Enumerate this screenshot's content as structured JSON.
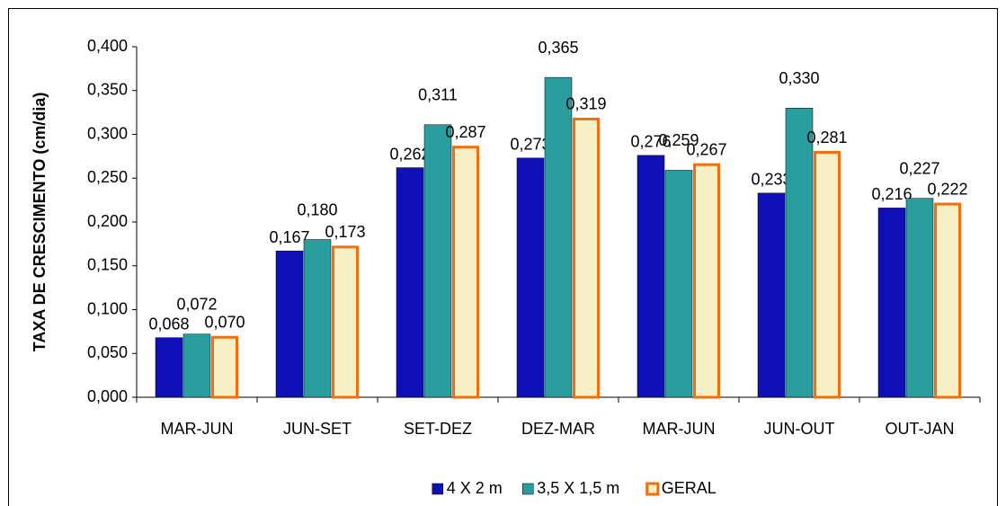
{
  "chart_data": {
    "type": "bar",
    "y_label": "TAXA DE CRESCIMENTO (cm/dia)",
    "categories": [
      "MAR-JUN",
      "JUN-SET",
      "SET-DEZ",
      "DEZ-MAR",
      "MAR-JUN",
      "JUN-OUT",
      "OUT-JAN"
    ],
    "series": [
      {
        "name": "4 X 2 m",
        "color": "#1010b8",
        "values": [
          0.068,
          0.167,
          0.262,
          0.273,
          0.276,
          0.233,
          0.216
        ],
        "value_labels": [
          "0,068",
          "0,167",
          "0,262",
          "0,273",
          "0,276",
          "0,233",
          "0,216"
        ]
      },
      {
        "name": "3,5 X 1,5 m",
        "color": "#2a9e9e",
        "values": [
          0.072,
          0.18,
          0.311,
          0.365,
          0.259,
          0.33,
          0.227
        ],
        "value_labels": [
          "0,072",
          "0,180",
          "0,311",
          "0,365",
          "0,259",
          "0,330",
          "0,227"
        ]
      },
      {
        "name": "GERAL",
        "color": "#f6f0c4",
        "edgecolor": "#f07010",
        "values": [
          0.07,
          0.173,
          0.287,
          0.319,
          0.267,
          0.281,
          0.222
        ],
        "value_labels": [
          "0,070",
          "0,173",
          "0,287",
          "0,319",
          "0,267",
          "0,281",
          "0,222"
        ]
      }
    ],
    "ylim": [
      0,
      0.4
    ],
    "yticks": [
      {
        "value": 0,
        "label": "0,000"
      },
      {
        "value": 0.05,
        "label": "0,050"
      },
      {
        "value": 0.1,
        "label": "0,100"
      },
      {
        "value": 0.15,
        "label": "0,150"
      },
      {
        "value": 0.2,
        "label": "0,200"
      },
      {
        "value": 0.25,
        "label": "0,250"
      },
      {
        "value": 0.3,
        "label": "0,300"
      },
      {
        "value": 0.35,
        "label": "0,350"
      },
      {
        "value": 0.4,
        "label": "0,400"
      }
    ],
    "grid": false,
    "legend": "bottom"
  }
}
